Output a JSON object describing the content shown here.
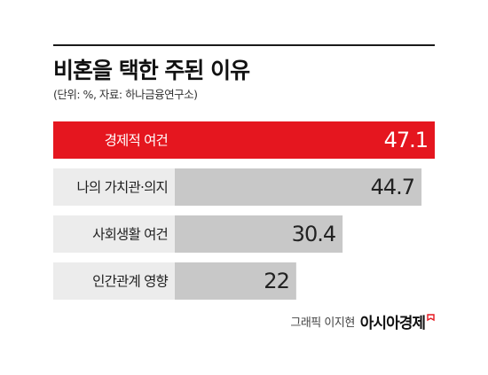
{
  "header": {
    "title": "비혼을 택한 주된 이유",
    "subtitle": "(단위: %, 자료: 하나금융연구소)"
  },
  "footer": {
    "credit": "그래픽 이지현",
    "brand": "아시아경제",
    "brand_icon": "flag-icon"
  },
  "colors": {
    "highlight": "#e5161f",
    "bar": "#c8c8c8",
    "category_highlight_bg": "#e5161f",
    "category_bg": "#ececec",
    "text_dark": "#222222",
    "text_light": "#ffffff"
  },
  "chart_data": {
    "type": "bar",
    "orientation": "horizontal",
    "categories": [
      "경제적 여건",
      "나의 가치관·의지",
      "사회생활 여건",
      "인간관계 영향"
    ],
    "values": [
      47.1,
      44.7,
      30.4,
      22
    ],
    "value_labels": [
      "47.1",
      "44.7",
      "30.4",
      "22"
    ],
    "highlight_index": 0,
    "title": "비혼을 택한 주된 이유",
    "subtitle": "(단위: %, 자료: 하나금융연구소)",
    "xlim": [
      0,
      47.1
    ],
    "grid": false,
    "legend": "none"
  }
}
